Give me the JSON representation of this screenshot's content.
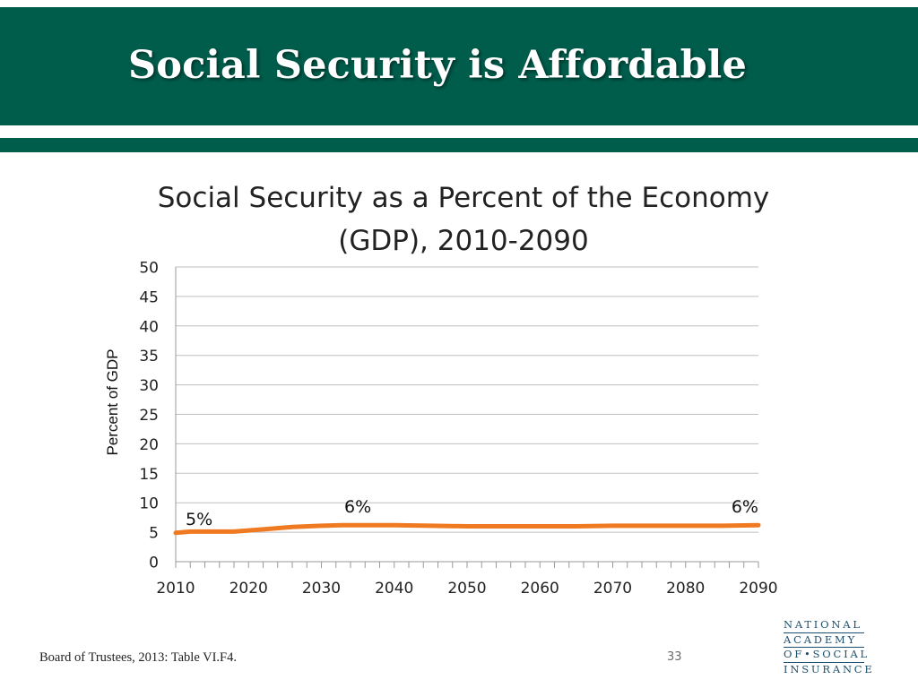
{
  "slide": {
    "title": "Social Security is Affordable",
    "footnote": "Board of Trustees, 2013: Table VI.F4.",
    "page_number": "33"
  },
  "logo": {
    "lines": [
      "NATIONAL",
      "ACADEMY",
      "OF•SOCIAL",
      "INSURANCE"
    ]
  },
  "colors": {
    "header": "#005c4b",
    "series": "#f07a21",
    "grid": "#bfbfbf",
    "logo": "#1d4f6e"
  },
  "chart_data": {
    "type": "line",
    "title": [
      "Social Security as a Percent of the Economy",
      "(GDP), 2010-2090"
    ],
    "xlabel": "",
    "ylabel": "Percent of GDP",
    "xlim": [
      2010,
      2090
    ],
    "ylim": [
      0,
      50
    ],
    "y_ticks": [
      0,
      5,
      10,
      15,
      20,
      25,
      30,
      35,
      40,
      45,
      50
    ],
    "x_tick_labels": [
      "2010",
      "2020",
      "2030",
      "2040",
      "2050",
      "2060",
      "2070",
      "2080",
      "2090"
    ],
    "x_minor_step": 1,
    "grid": true,
    "legend": "none",
    "series": [
      {
        "name": "Social Security as a Percent of GDP",
        "x": [
          2010,
          2012,
          2015,
          2018,
          2020,
          2023,
          2026,
          2030,
          2033,
          2036,
          2040,
          2045,
          2050,
          2055,
          2060,
          2065,
          2070,
          2075,
          2080,
          2085,
          2090
        ],
        "values": [
          4.9,
          5.1,
          5.1,
          5.1,
          5.3,
          5.6,
          5.9,
          6.1,
          6.2,
          6.2,
          6.2,
          6.1,
          6.0,
          6.0,
          6.0,
          6.0,
          6.1,
          6.1,
          6.1,
          6.1,
          6.2
        ]
      }
    ],
    "annotations": [
      {
        "text": "5%",
        "x": 2010,
        "y": 4.9
      },
      {
        "text": "6%",
        "x": 2035,
        "y": 6.2
      },
      {
        "text": "6%",
        "x": 2090,
        "y": 6.2
      }
    ]
  }
}
